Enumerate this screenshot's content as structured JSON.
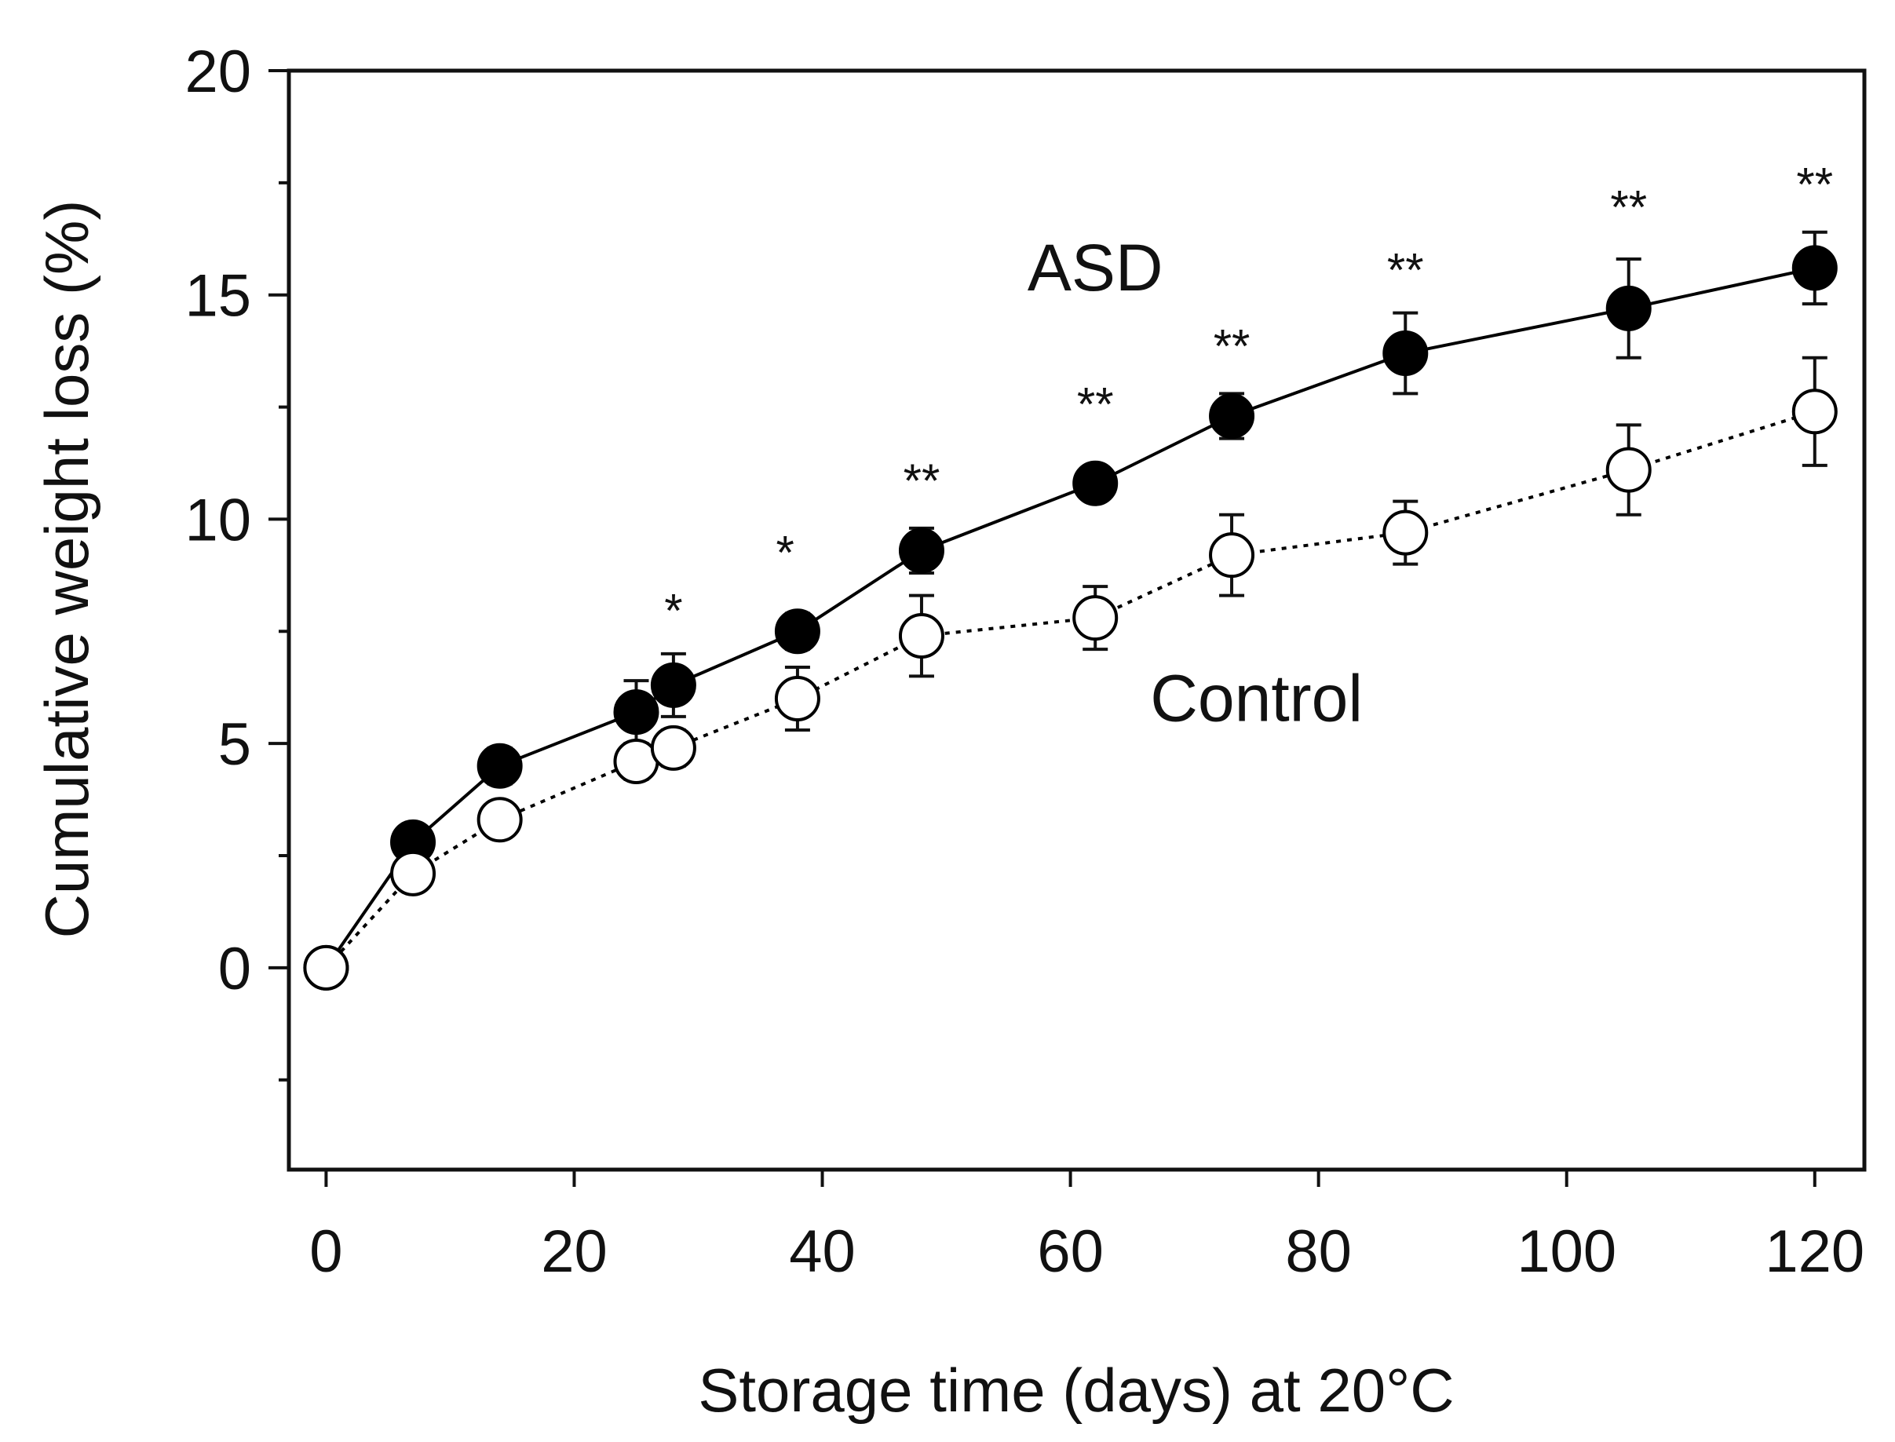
{
  "chart_data": {
    "type": "line",
    "title": "",
    "xlabel": "Storage time (days) at 20°C",
    "ylabel": "Cumulative weight loss (%)",
    "xlim": [
      -3,
      124
    ],
    "ylim": [
      -4.5,
      20
    ],
    "xticks": [
      0,
      20,
      40,
      60,
      80,
      100,
      120
    ],
    "xtick_labels": [
      "0",
      "20",
      "40",
      "60",
      "80",
      "100",
      "120"
    ],
    "yticks": [
      0,
      5,
      10,
      15,
      20
    ],
    "ytick_labels": [
      "0",
      "5",
      "10",
      "15",
      "20"
    ],
    "y_minor_ticks": [
      -2.5,
      2.5,
      7.5,
      12.5,
      17.5
    ],
    "grid": false,
    "series": [
      {
        "name": "ASD",
        "marker": "filled-circle",
        "line_style": "solid",
        "color": "#000000",
        "x": [
          0,
          7,
          14,
          25,
          28,
          38,
          48,
          62,
          73,
          87,
          105,
          120
        ],
        "y": [
          0,
          2.8,
          4.5,
          5.7,
          6.3,
          7.5,
          9.3,
          10.8,
          12.3,
          13.7,
          14.7,
          15.6
        ],
        "error": [
          0,
          0.3,
          0.4,
          0.7,
          0.7,
          0.4,
          0.5,
          0.3,
          0.5,
          0.9,
          1.1,
          0.8
        ]
      },
      {
        "name": "Control",
        "marker": "open-circle",
        "line_style": "dotted",
        "color": "#000000",
        "x": [
          0,
          7,
          14,
          25,
          28,
          38,
          48,
          62,
          73,
          87,
          105,
          120
        ],
        "y": [
          0,
          2.1,
          3.3,
          4.6,
          4.9,
          6.0,
          7.4,
          7.8,
          9.2,
          9.7,
          11.1,
          12.4
        ],
        "error": [
          0,
          0.3,
          0.3,
          0.4,
          0.4,
          0.7,
          0.9,
          0.7,
          0.9,
          0.7,
          1.0,
          1.2
        ]
      }
    ],
    "annotations": [
      {
        "text": "ASD",
        "x": 62,
        "y": 15.1
      },
      {
        "text": "Control",
        "x": 75,
        "y": 5.5
      }
    ],
    "significance": [
      {
        "x": 28,
        "y": 7.6,
        "text": "*"
      },
      {
        "x": 37,
        "y": 8.9,
        "text": "*"
      },
      {
        "x": 48,
        "y": 10.5,
        "text": "**"
      },
      {
        "x": 62,
        "y": 12.2,
        "text": "**"
      },
      {
        "x": 73,
        "y": 13.5,
        "text": "**"
      },
      {
        "x": 87,
        "y": 15.2,
        "text": "**"
      },
      {
        "x": 105,
        "y": 16.6,
        "text": "**"
      },
      {
        "x": 120,
        "y": 17.1,
        "text": "**"
      }
    ]
  }
}
